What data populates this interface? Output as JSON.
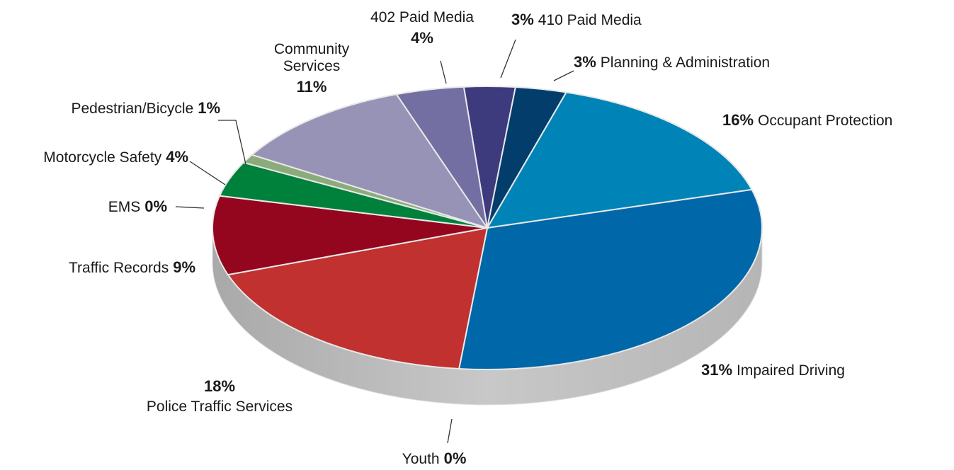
{
  "chart_data": {
    "type": "pie",
    "categories": [
      "410 Paid Media",
      "Planning & Administration",
      "Occupant Protection",
      "Impaired Driving",
      "Youth",
      "Police Traffic Services",
      "Traffic Records",
      "EMS",
      "Motorcycle Safety",
      "Pedestrian/Bicycle",
      "Community Services",
      "402 Paid Media"
    ],
    "values": [
      3,
      3,
      16,
      31,
      0,
      18,
      9,
      0,
      4,
      1,
      11,
      4
    ],
    "value_labels": [
      "3%",
      "3%",
      "16%",
      "31%",
      "0%",
      "18%",
      "9%",
      "0%",
      "4%",
      "1%",
      "11%",
      "4%"
    ],
    "colors": [
      "#3e3a7e",
      "#033d6b",
      "#0084b8",
      "#0067a9",
      "#d4d4d4",
      "#c0312f",
      "#93061e",
      "#6a8a4a",
      "#00813b",
      "#8bab7a",
      "#9693b6",
      "#746fa2"
    ]
  }
}
